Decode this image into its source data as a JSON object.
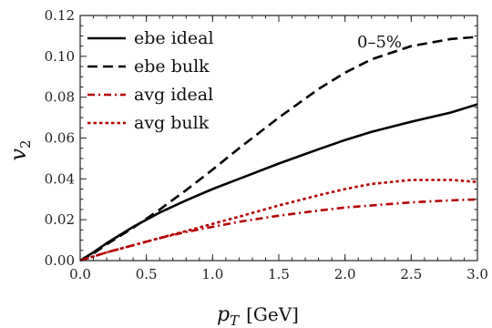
{
  "chart_data": {
    "type": "line",
    "title": "",
    "xlabel_main": "p",
    "xlabel_sub": "T",
    "xlabel_unit": "[GeV]",
    "ylabel_main": "v",
    "ylabel_sub": "2",
    "xlim": [
      0,
      3
    ],
    "ylim": [
      0,
      0.12
    ],
    "xticks": [
      "0.0",
      "0.5",
      "1.0",
      "1.5",
      "2.0",
      "2.5",
      "3.0"
    ],
    "yticks": [
      "0.00",
      "0.02",
      "0.04",
      "0.06",
      "0.08",
      "0.10",
      "0.12"
    ],
    "annotation": "0–5%",
    "grid": false,
    "legend_position": "top-left",
    "series": [
      {
        "name": "ebe ideal",
        "color": "#000000",
        "style": "solid",
        "x": [
          0,
          0.1,
          0.2,
          0.4,
          0.6,
          0.8,
          1.0,
          1.2,
          1.5,
          1.8,
          2.0,
          2.2,
          2.5,
          2.8,
          3.0
        ],
        "y": [
          0,
          0.004,
          0.0085,
          0.0165,
          0.0235,
          0.0295,
          0.035,
          0.04,
          0.0475,
          0.0545,
          0.059,
          0.063,
          0.068,
          0.0725,
          0.0765
        ]
      },
      {
        "name": "ebe bulk",
        "color": "#000000",
        "style": "dashed",
        "x": [
          0,
          0.1,
          0.2,
          0.4,
          0.6,
          0.8,
          1.0,
          1.2,
          1.5,
          1.8,
          2.0,
          2.2,
          2.5,
          2.8,
          3.0
        ],
        "y": [
          0,
          0.0035,
          0.008,
          0.016,
          0.025,
          0.0345,
          0.0445,
          0.055,
          0.07,
          0.084,
          0.092,
          0.0985,
          0.105,
          0.1085,
          0.1095
        ]
      },
      {
        "name": "avg ideal",
        "color": "#b40000",
        "style": "dashdot",
        "x": [
          0,
          0.1,
          0.2,
          0.4,
          0.6,
          0.8,
          1.0,
          1.2,
          1.5,
          1.8,
          2.0,
          2.2,
          2.5,
          2.8,
          3.0
        ],
        "y": [
          0,
          0.002,
          0.004,
          0.0075,
          0.011,
          0.014,
          0.0165,
          0.019,
          0.022,
          0.0245,
          0.026,
          0.027,
          0.0285,
          0.0295,
          0.03
        ]
      },
      {
        "name": "avg bulk",
        "color": "#b40000",
        "style": "dotted",
        "x": [
          0,
          0.1,
          0.2,
          0.4,
          0.6,
          0.8,
          1.0,
          1.2,
          1.5,
          1.8,
          2.0,
          2.2,
          2.5,
          2.8,
          3.0
        ],
        "y": [
          0,
          0.002,
          0.004,
          0.0075,
          0.011,
          0.0145,
          0.018,
          0.0215,
          0.027,
          0.032,
          0.035,
          0.0375,
          0.0395,
          0.0395,
          0.0385
        ]
      }
    ]
  }
}
